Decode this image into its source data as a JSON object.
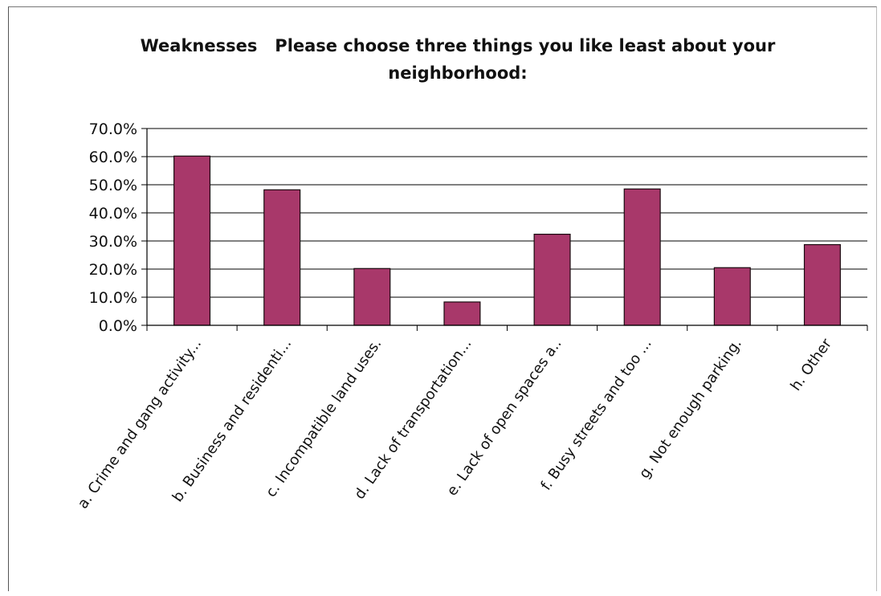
{
  "chart_data": {
    "type": "bar",
    "title": "Weaknesses   Please choose three things you like least about your neighborhood:",
    "categories": [
      "a. Crime and gang activity...",
      "b. Business and residenti...",
      "c. Incompatible land uses.",
      "d. Lack of transportation...",
      "e. Lack of open spaces a..",
      "f. Busy streets and too ...",
      "g. Not enough parking.",
      "h. Other"
    ],
    "values": [
      60.2,
      48.2,
      20.2,
      8.3,
      32.4,
      48.5,
      20.5,
      28.7
    ],
    "yticks": [
      "0.0%",
      "10.0%",
      "20.0%",
      "30.0%",
      "40.0%",
      "50.0%",
      "60.0%",
      "70.0%"
    ],
    "ylim": [
      0,
      70
    ],
    "grid": true,
    "legend": "none",
    "colors": {
      "bar_fill": "#A8386A",
      "bar_stroke": "#1a0a10",
      "grid": "#000000"
    }
  }
}
